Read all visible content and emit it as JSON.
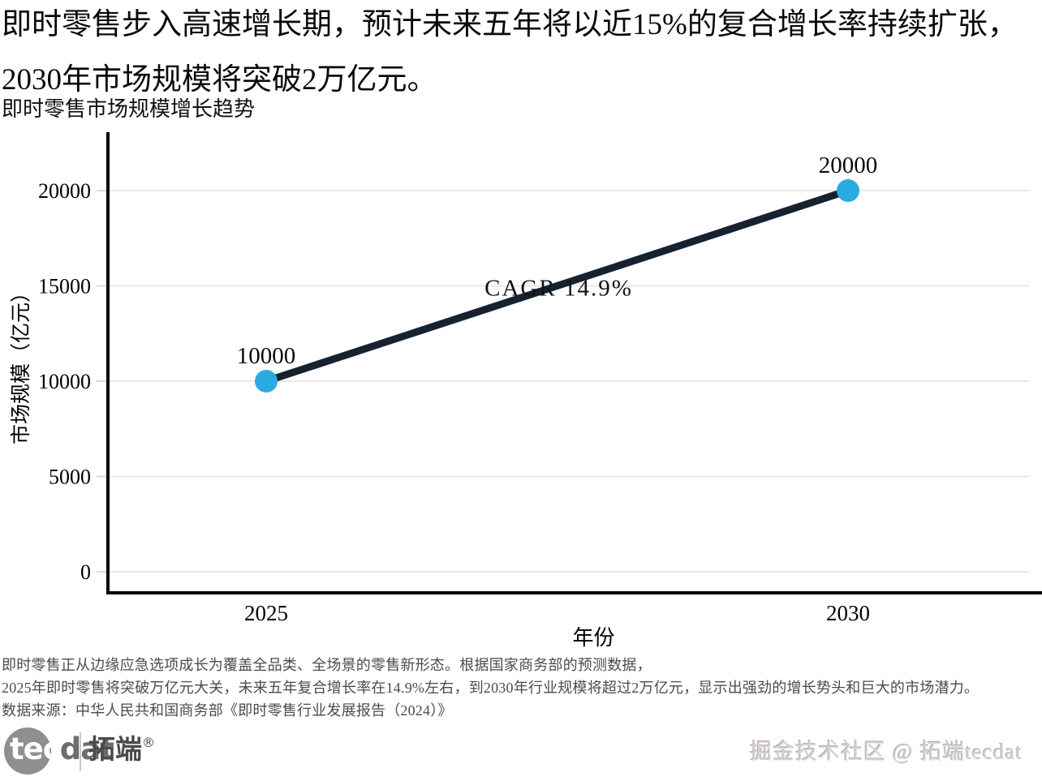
{
  "header": {
    "line1": "即时零售步入高速增长期，预计未来五年将以近15%的复合增长率持续扩张，",
    "line2": "2030年市场规模将突破2万亿元。"
  },
  "chart_title": "即时零售市场规模增长趋势",
  "chart_data": {
    "type": "line",
    "categories": [
      "2025",
      "2030"
    ],
    "x": [
      2025,
      2030
    ],
    "values": [
      10000,
      20000
    ],
    "point_labels": [
      "10000",
      "20000"
    ],
    "series": [
      {
        "name": "市场规模",
        "values": [
          10000,
          20000
        ]
      }
    ],
    "title": "即时零售市场规模增长趋势",
    "xlabel": "年份",
    "ylabel": "市场规模（亿元）",
    "ylim": [
      0,
      23000
    ],
    "yticks": [
      0,
      5000,
      10000,
      15000,
      20000
    ],
    "ytick_labels": [
      "0",
      "5000",
      "10000",
      "15000",
      "20000"
    ],
    "grid": true,
    "legend": "none",
    "annotation": "CAGR 14.9%",
    "line_color": "#16222f",
    "point_color": "#29abe2",
    "grid_color": "#e7e7e7",
    "axis_color": "#000000"
  },
  "footnote": {
    "line1": "即时零售正从边缘应急选项成长为覆盖全品类、全场景的零售新形态。根据国家商务部的预测数据，",
    "line2": "2025年即时零售将突破万亿元大关，未来五年复合增长率在14.9%左右，到2030年行业规模将超过2万亿元，显示出强劲的增长势头和巨大的市场潜力。",
    "line3": "数据来源：中华人民共和国商务部《即时零售行业发展报告（2024）》"
  },
  "branding": {
    "logo_tec": "tec",
    "logo_dat": "dat",
    "logo_cn": "拓端",
    "logo_reg": "®",
    "watermark": "掘金技术社区 @ 拓端tecdat"
  }
}
